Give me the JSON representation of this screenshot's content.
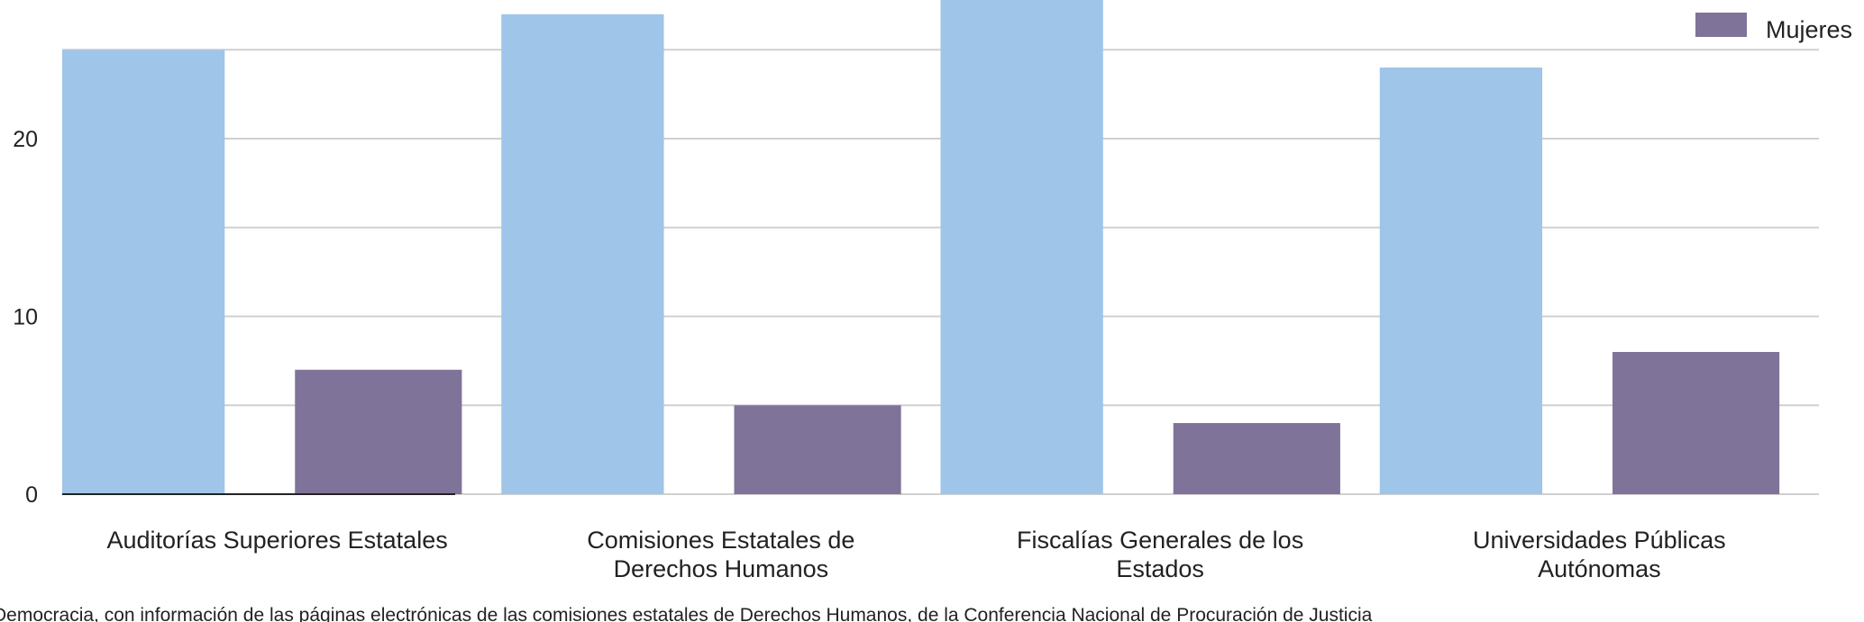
{
  "chart_data": {
    "type": "bar",
    "categories": [
      "Auditorías Superiores Estatales",
      "Comisiones Estatales de Derechos Humanos",
      "Fiscalías Generales de los Estados",
      "Universidades Públicas Autónomas"
    ],
    "series": [
      {
        "color": "#9fc5e8",
        "values": [
          25,
          27,
          28,
          24
        ]
      },
      {
        "name": "Mujeres",
        "color": "#7f7399",
        "values": [
          7,
          5,
          4,
          8
        ]
      }
    ],
    "ylim": [
      0,
      27.8
    ],
    "yticks": [
      0,
      10,
      20
    ],
    "minor_yticks": [
      5,
      15,
      25
    ],
    "grid": true,
    "legend": "top-right",
    "source": "Democracia, con información de las páginas electrónicas de las comisiones estatales de Derechos Humanos, de la Conferencia Nacional de Procuración de Justicia"
  }
}
